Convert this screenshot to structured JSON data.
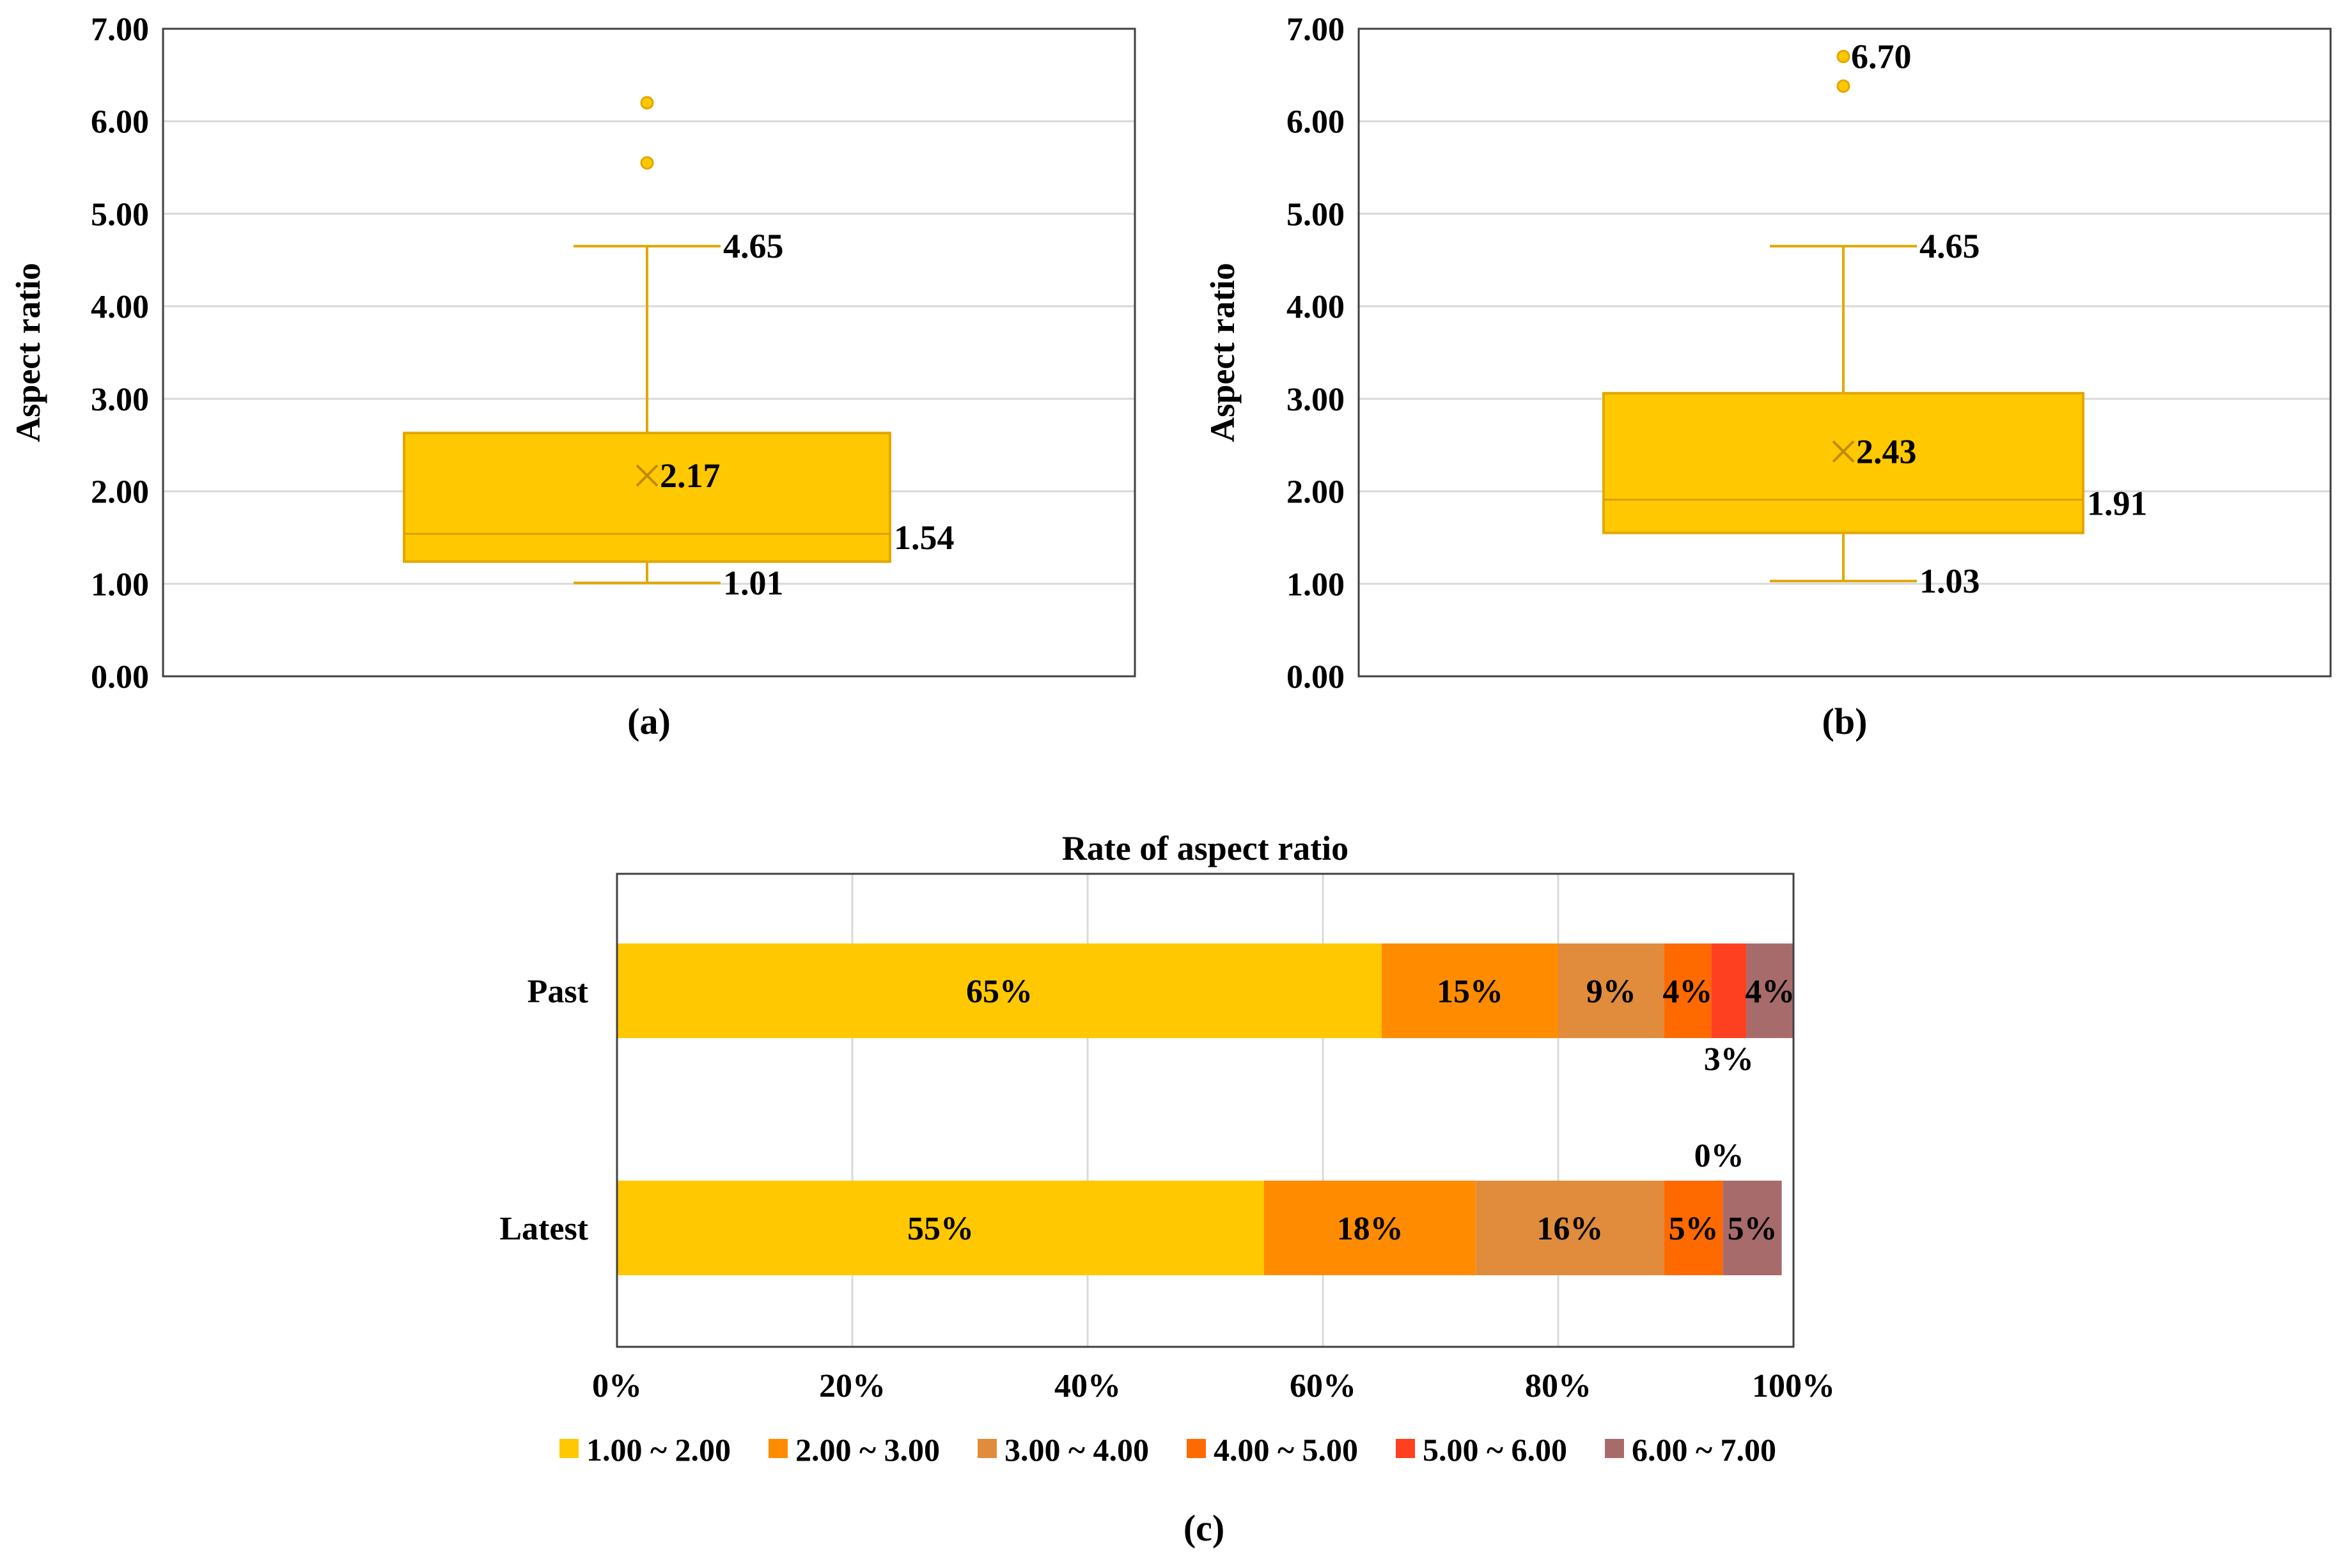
{
  "figure_labels": [
    "(a)",
    "(b)",
    "(c)"
  ],
  "chart_data": [
    {
      "type": "box",
      "panel": "(a)",
      "ylabel": "Aspect ratio",
      "ylim": [
        0,
        7
      ],
      "yticks": [
        "0.00",
        "1.00",
        "2.00",
        "3.00",
        "4.00",
        "5.00",
        "6.00",
        "7.00"
      ],
      "grid": true,
      "color": "#FFC800",
      "stats": {
        "min": 1.01,
        "q1": 1.24,
        "median": 1.54,
        "q3": 2.63,
        "max": 4.65,
        "mean": 2.17
      },
      "outliers": [
        5.55,
        6.2
      ],
      "labels": {
        "max": "4.65",
        "median": "1.54",
        "min": "1.01",
        "mean": "2.17"
      }
    },
    {
      "type": "box",
      "panel": "(b)",
      "ylabel": "Aspect ratio",
      "ylim": [
        0,
        7
      ],
      "yticks": [
        "0.00",
        "1.00",
        "2.00",
        "3.00",
        "4.00",
        "5.00",
        "6.00",
        "7.00"
      ],
      "grid": true,
      "color": "#FFC800",
      "stats": {
        "min": 1.03,
        "q1": 1.55,
        "median": 1.91,
        "q3": 3.06,
        "max": 4.65,
        "mean": 2.43
      },
      "outliers": [
        6.38,
        6.7
      ],
      "labels": {
        "max": "4.65",
        "median": "1.91",
        "min": "1.03",
        "mean": "2.43",
        "top_outlier": "6.70"
      }
    },
    {
      "type": "bar",
      "orientation": "horizontal",
      "stacked": "percent",
      "panel": "(c)",
      "title": "Rate of aspect ratio",
      "categories": [
        "Past",
        "Latest"
      ],
      "xticks": [
        "0%",
        "20%",
        "40%",
        "60%",
        "80%",
        "100%"
      ],
      "grid": true,
      "legend_position": "bottom",
      "series": [
        {
          "name": "1.00 ~ 2.00",
          "color": "#FFC800",
          "values": [
            65,
            55
          ],
          "labels": [
            "65%",
            "55%"
          ]
        },
        {
          "name": "2.00 ~ 3.00",
          "color": "#FF8C00",
          "values": [
            15,
            18
          ],
          "labels": [
            "15%",
            "18%"
          ]
        },
        {
          "name": "3.00 ~ 4.00",
          "color": "#E08C3C",
          "values": [
            9,
            16
          ],
          "labels": [
            "9%",
            "16%"
          ]
        },
        {
          "name": "4.00 ~ 5.00",
          "color": "#FF6A00",
          "values": [
            4,
            5
          ],
          "labels": [
            "4%",
            "5%"
          ]
        },
        {
          "name": "5.00 ~ 6.00",
          "color": "#FF4020",
          "values": [
            3,
            0
          ],
          "labels": [
            "3%",
            "0%"
          ]
        },
        {
          "name": "6.00 ~ 7.00",
          "color": "#A86B6B",
          "values": [
            4,
            5
          ],
          "labels": [
            "4%",
            "5%"
          ]
        }
      ]
    }
  ]
}
